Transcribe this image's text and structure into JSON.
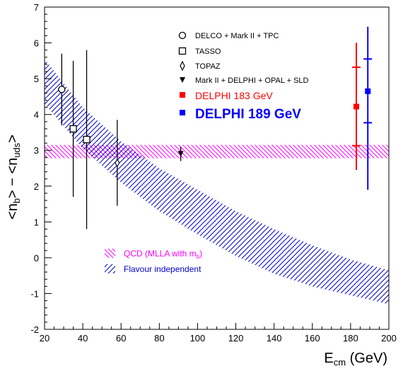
{
  "chart_data": {
    "type": "scatter",
    "xlabel": {
      "main": "E",
      "sub": "cm",
      "unit": " (GeV)"
    },
    "ylabel": {
      "a": "<n",
      "a_sub": "b",
      "b": "> − <n",
      "b_sub": "uds",
      "c": ">"
    },
    "xlim": [
      20,
      200
    ],
    "ylim": [
      -2,
      7
    ],
    "x_ticks": [
      "20",
      "40",
      "60",
      "80",
      "100",
      "120",
      "140",
      "160",
      "180",
      "200"
    ],
    "y_ticks": [
      "-2",
      "-1",
      "0",
      "1",
      "2",
      "3",
      "4",
      "5",
      "6",
      "7"
    ],
    "grid": false,
    "series": [
      {
        "name": "DELCO + Mark II + TPC",
        "marker": "circle-open",
        "color": "#000000",
        "points": [
          {
            "x": 29,
            "y": 4.7,
            "ylo": 3.7,
            "yhi": 5.7
          }
        ]
      },
      {
        "name": "TASSO",
        "marker": "square-open",
        "color": "#000000",
        "points": [
          {
            "x": 35,
            "y": 3.6,
            "ylo": 1.7,
            "yhi": 5.5
          },
          {
            "x": 42,
            "y": 3.3,
            "ylo": 0.8,
            "yhi": 5.8
          }
        ]
      },
      {
        "name": "TOPAZ",
        "marker": "diamond-open",
        "color": "#000000",
        "points": [
          {
            "x": 58,
            "y": 2.65,
            "ylo": 1.45,
            "yhi": 3.85
          }
        ]
      },
      {
        "name": "Mark II + DELPHI + OPAL + SLD",
        "marker": "triangle-down",
        "color": "#000000",
        "points": [
          {
            "x": 91.2,
            "y": 2.9,
            "ylo": 2.7,
            "yhi": 3.1
          }
        ]
      },
      {
        "name": "DELPHI 183 GeV",
        "marker": "square-filled",
        "color": "#ff0000",
        "points": [
          {
            "x": 183,
            "y": 4.22,
            "ylo": 2.45,
            "yhi": 6.0,
            "ystat_lo": 3.13,
            "ystat_hi": 5.32
          }
        ]
      },
      {
        "name": "DELPHI 189 GeV",
        "marker": "square-filled",
        "color": "#0000ff",
        "points": [
          {
            "x": 189,
            "y": 4.65,
            "ylo": 1.9,
            "yhi": 6.45,
            "ystat_lo": 3.77,
            "ystat_hi": 5.55
          }
        ]
      }
    ],
    "bands": [
      {
        "name": "QCD (MLLA with m",
        "name_sub": "b",
        "name_tail": ")",
        "color": "#ff00ff",
        "hatch": "backslash",
        "x": [
          20,
          200
        ],
        "lower": [
          2.78,
          2.78
        ],
        "upper": [
          3.15,
          3.15
        ]
      },
      {
        "name": "Flavour independent",
        "color": "#0000cc",
        "hatch": "forward",
        "x": [
          20,
          40,
          60,
          80,
          100,
          120,
          140,
          160,
          180,
          200
        ],
        "lower": [
          4.3,
          3.05,
          2.1,
          1.3,
          0.65,
          0.05,
          -0.45,
          -0.8,
          -1.05,
          -1.3
        ],
        "upper": [
          5.55,
          4.2,
          3.25,
          2.5,
          1.9,
          1.3,
          0.8,
          0.35,
          -0.05,
          -0.35
        ]
      }
    ]
  }
}
